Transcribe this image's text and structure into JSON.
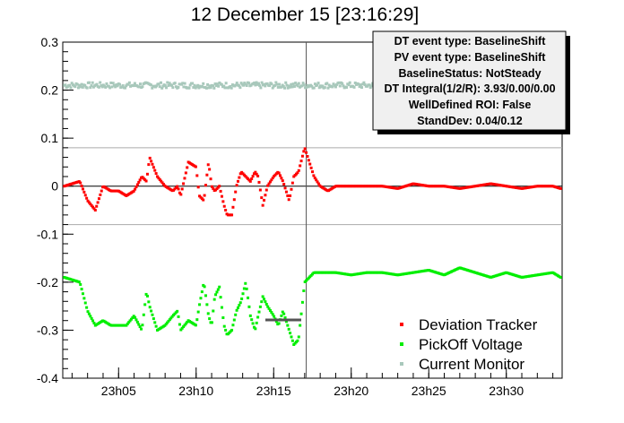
{
  "chart_data": {
    "type": "scatter",
    "title": "12 December 15 [23:16:29]",
    "xlabel": "",
    "ylabel": "",
    "x_unit": "minutes",
    "xlim": [
      1.4,
      33.6
    ],
    "ylim": [
      -0.4,
      0.3
    ],
    "xticks": [
      {
        "value": 5,
        "label": "23h05"
      },
      {
        "value": 10,
        "label": "23h10"
      },
      {
        "value": 15,
        "label": "23h15"
      },
      {
        "value": 20,
        "label": "23h20"
      },
      {
        "value": 25,
        "label": "23h25"
      },
      {
        "value": 30,
        "label": "23h30"
      }
    ],
    "yticks": [
      -0.4,
      -0.3,
      -0.2,
      -0.1,
      0,
      0.1,
      0.2,
      0.3
    ],
    "grid": false,
    "reference_lines": {
      "horizontal": [
        0.08,
        -0.08,
        0
      ],
      "vertical": [
        17.1
      ]
    },
    "info_box": {
      "lines": [
        "DT event type: BaselineShift",
        "PV event type: BaselineShift",
        "BaselineStatus: NotSteady",
        "DT Integral(1/2/R): 3.93/0.00/0.00",
        "WellDefined ROI: False",
        "StandDev: 0.04/0.12"
      ]
    },
    "legend": {
      "position": "bottom-right"
    },
    "series": [
      {
        "name": "Deviation Tracker",
        "color": "#ff0000",
        "x": [
          1.5,
          2.5,
          3.0,
          3.5,
          4.0,
          4.5,
          5.0,
          5.5,
          6.0,
          6.5,
          6.8,
          7.0,
          7.5,
          8.0,
          8.5,
          8.8,
          9.0,
          9.5,
          10.0,
          10.2,
          10.5,
          10.8,
          11.0,
          11.2,
          11.5,
          11.8,
          12.0,
          12.3,
          12.6,
          12.9,
          13.2,
          13.5,
          13.8,
          14.0,
          14.3,
          14.6,
          15.0,
          15.3,
          15.6,
          16.0,
          16.3,
          16.6,
          17.0,
          17.3,
          17.6,
          18.0,
          18.5,
          19.0,
          20.0,
          21.0,
          22.0,
          23.0,
          24.0,
          25.0,
          26.0,
          27.0,
          28.0,
          29.0,
          30.0,
          31.0,
          32.0,
          33.0,
          33.5
        ],
        "y": [
          0.0,
          0.01,
          -0.03,
          -0.05,
          0.0,
          -0.01,
          -0.01,
          -0.02,
          -0.01,
          0.02,
          0.01,
          0.06,
          0.02,
          0.0,
          -0.01,
          0.0,
          -0.02,
          0.05,
          0.04,
          -0.02,
          -0.03,
          0.05,
          0.0,
          -0.01,
          0.0,
          -0.04,
          -0.06,
          -0.06,
          0.0,
          0.03,
          0.02,
          0.01,
          0.03,
          0.02,
          -0.04,
          0.0,
          0.02,
          0.03,
          0.01,
          -0.03,
          0.02,
          0.03,
          0.08,
          0.05,
          0.02,
          0.0,
          -0.01,
          0.0,
          0.0,
          0.0,
          0.0,
          -0.005,
          0.005,
          0.0,
          0.0,
          -0.005,
          0.0,
          0.005,
          0.0,
          -0.005,
          0.0,
          0.0,
          -0.005
        ]
      },
      {
        "name": "PickOff Voltage",
        "color": "#00ee00",
        "x": [
          1.5,
          2.5,
          3.0,
          3.5,
          4.0,
          4.5,
          5.0,
          5.5,
          6.0,
          6.5,
          6.8,
          7.0,
          7.5,
          8.0,
          8.5,
          8.8,
          9.0,
          9.5,
          10.0,
          10.2,
          10.5,
          10.8,
          11.0,
          11.2,
          11.5,
          11.8,
          12.0,
          12.3,
          12.6,
          12.9,
          13.2,
          13.5,
          13.8,
          14.0,
          14.3,
          14.6,
          15.0,
          15.3,
          15.6,
          16.0,
          16.3,
          16.6,
          17.0,
          17.3,
          17.6,
          18.0,
          18.5,
          19.0,
          20.0,
          21.0,
          22.0,
          23.0,
          24.0,
          25.0,
          26.0,
          27.0,
          28.0,
          29.0,
          30.0,
          31.0,
          32.0,
          33.0,
          33.5
        ],
        "y": [
          -0.19,
          -0.2,
          -0.26,
          -0.29,
          -0.28,
          -0.29,
          -0.29,
          -0.29,
          -0.27,
          -0.3,
          -0.22,
          -0.25,
          -0.3,
          -0.29,
          -0.27,
          -0.26,
          -0.3,
          -0.28,
          -0.29,
          -0.25,
          -0.2,
          -0.27,
          -0.29,
          -0.23,
          -0.21,
          -0.29,
          -0.31,
          -0.3,
          -0.26,
          -0.24,
          -0.2,
          -0.27,
          -0.3,
          -0.27,
          -0.23,
          -0.25,
          -0.27,
          -0.29,
          -0.26,
          -0.3,
          -0.33,
          -0.32,
          -0.2,
          -0.19,
          -0.18,
          -0.18,
          -0.18,
          -0.18,
          -0.185,
          -0.18,
          -0.18,
          -0.185,
          -0.18,
          -0.175,
          -0.185,
          -0.17,
          -0.18,
          -0.19,
          -0.18,
          -0.19,
          -0.185,
          -0.18,
          -0.19
        ]
      },
      {
        "name": "Current Monitor",
        "color": "#a8c8bb",
        "level": 0.21,
        "x_range": [
          1.5,
          25.0
        ]
      }
    ]
  }
}
